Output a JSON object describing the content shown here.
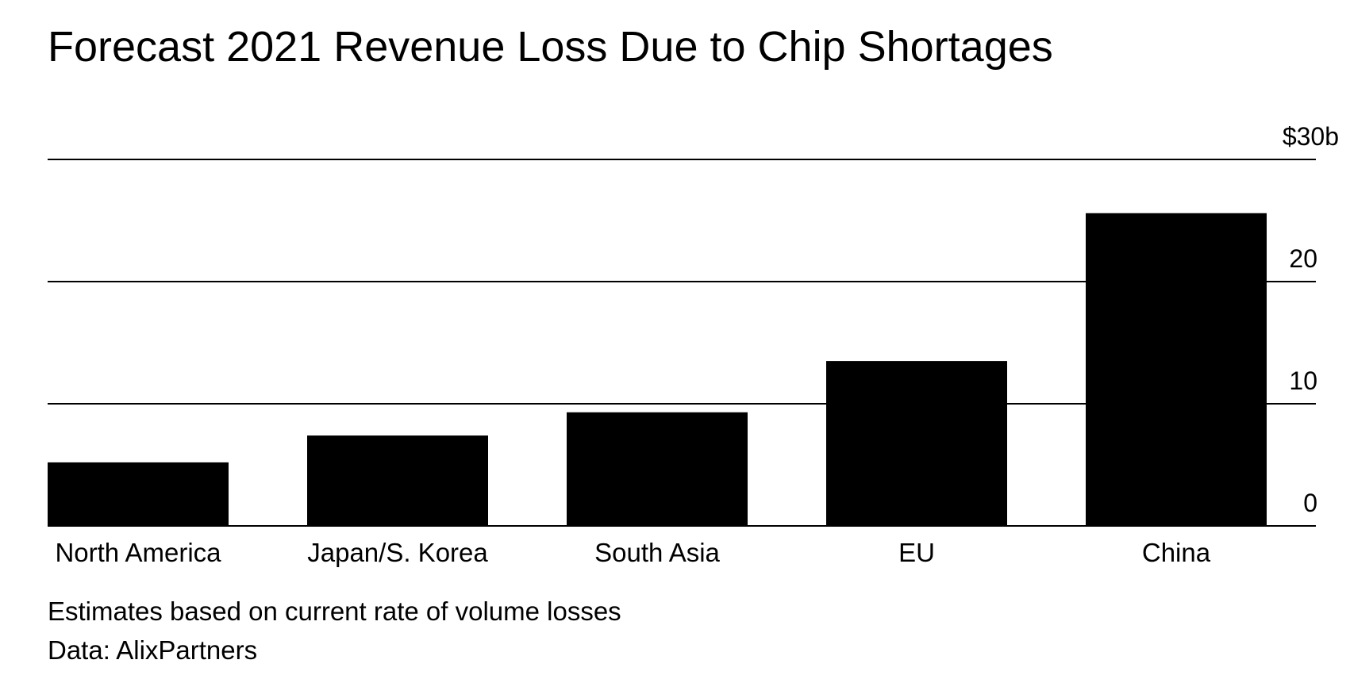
{
  "title": "Forecast 2021 Revenue Loss Due to Chip Shortages",
  "notes": {
    "subtitle": "Estimates based on current rate of volume losses",
    "source": "Data: AlixPartners"
  },
  "colors": {
    "bar": "#000000",
    "gridline": "#000000",
    "background": "#ffffff"
  },
  "chart_data": {
    "type": "bar",
    "categories": [
      "North America",
      "Japan/S. Korea",
      "South Asia",
      "EU",
      "China"
    ],
    "values": [
      5.2,
      7.4,
      9.3,
      13.5,
      25.6
    ],
    "ylim": [
      0,
      30
    ],
    "yticks": [
      0,
      10,
      20,
      30
    ],
    "ytick_labels": [
      "0",
      "10",
      "20",
      "$30b"
    ],
    "y_axis_side": "right",
    "grid": true
  }
}
